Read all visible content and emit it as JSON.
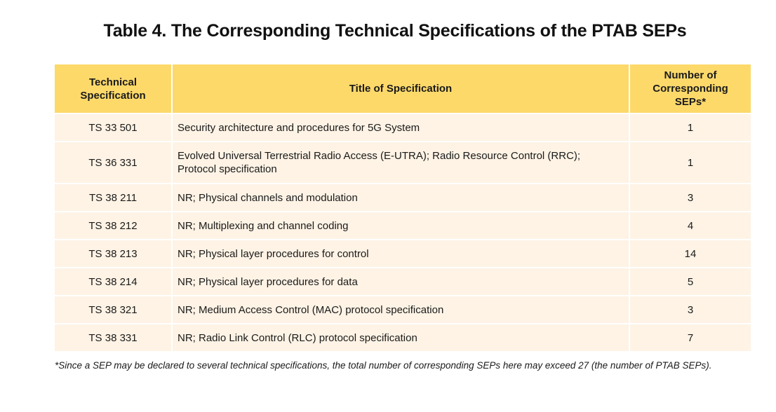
{
  "title": "Table 4. The Corresponding Technical Specifications of the PTAB SEPs",
  "colors": {
    "header_bg": "#fdd96a",
    "row_bg": "#fef3e5"
  },
  "table": {
    "headers": {
      "spec_line1": "Technical",
      "spec_line2": "Specification",
      "title": "Title of Specification",
      "count_line1": "Number of",
      "count_line2": "Corresponding",
      "count_line3": "SEPs*"
    },
    "rows": [
      {
        "spec": "TS 33 501",
        "title": "Security architecture and procedures for 5G System",
        "count": "1"
      },
      {
        "spec": "TS 36 331",
        "title": "Evolved Universal Terrestrial Radio Access (E-UTRA); Radio Resource Control (RRC);",
        "title_line2": "Protocol specification",
        "count": "1"
      },
      {
        "spec": "TS 38 211",
        "title": "NR; Physical channels and modulation",
        "count": "3"
      },
      {
        "spec": "TS 38 212",
        "title": "NR; Multiplexing and channel coding",
        "count": "4"
      },
      {
        "spec": "TS 38 213",
        "title": "NR; Physical layer procedures for control",
        "count": "14"
      },
      {
        "spec": "TS 38 214",
        "title": "NR; Physical layer procedures for data",
        "count": "5"
      },
      {
        "spec": "TS 38 321",
        "title": "NR; Medium Access Control (MAC) protocol specification",
        "count": "3"
      },
      {
        "spec": "TS 38 331",
        "title": "NR; Radio Link Control (RLC) protocol specification",
        "count": "7"
      }
    ]
  },
  "footnote": "*Since a SEP may be declared to several technical specifications, the total number of corresponding SEPs here may exceed 27 (the number of PTAB SEPs)."
}
